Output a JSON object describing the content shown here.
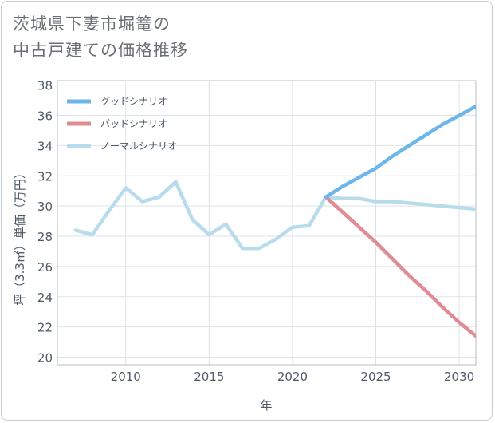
{
  "title_line1": "茨城県下妻市堀篭の",
  "title_line2": "中古戸建ての価格推移",
  "chart_data": {
    "type": "line",
    "xlabel": "年",
    "ylabel": "坪（3.3㎡）単価（万円）",
    "xlim": [
      2005.9,
      2031
    ],
    "ylim": [
      19.5,
      38.3
    ],
    "x_ticks": [
      2010,
      2015,
      2020,
      2025,
      2030
    ],
    "y_ticks": [
      20,
      22,
      24,
      26,
      28,
      30,
      32,
      34,
      36,
      38
    ],
    "grid": true,
    "legend_position": "top-left",
    "series": [
      {
        "name": "グッドシナリオ",
        "color": "#6cb6ea",
        "x": [
          2022,
          2023,
          2024,
          2025,
          2026,
          2027,
          2028,
          2029,
          2030,
          2031
        ],
        "values": [
          30.6,
          31.3,
          31.9,
          32.5,
          33.3,
          34.0,
          34.7,
          35.4,
          36.0,
          36.6
        ]
      },
      {
        "name": "バッドシナリオ",
        "color": "#df8c94",
        "x": [
          2022,
          2023,
          2024,
          2025,
          2026,
          2027,
          2028,
          2029,
          2030,
          2031
        ],
        "values": [
          30.6,
          29.6,
          28.6,
          27.6,
          26.5,
          25.4,
          24.4,
          23.3,
          22.3,
          21.4
        ]
      },
      {
        "name": "ノーマルシナリオ",
        "color": "#b9dced",
        "x": [
          2007,
          2008,
          2009,
          2010,
          2011,
          2012,
          2013,
          2014,
          2015,
          2016,
          2017,
          2018,
          2019,
          2020,
          2021,
          2022,
          2023,
          2024,
          2025,
          2026,
          2027,
          2028,
          2029,
          2030,
          2031
        ],
        "values": [
          28.4,
          28.1,
          29.7,
          31.2,
          30.3,
          30.6,
          31.6,
          29.1,
          28.1,
          28.8,
          27.2,
          27.2,
          27.8,
          28.6,
          28.7,
          30.6,
          30.5,
          30.5,
          30.3,
          30.3,
          30.2,
          30.1,
          30.0,
          29.9,
          29.8
        ]
      }
    ]
  }
}
